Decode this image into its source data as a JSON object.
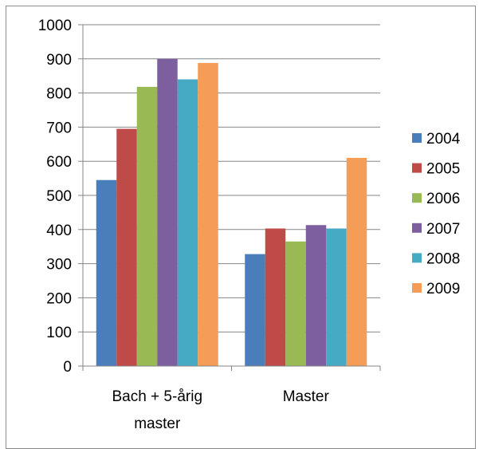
{
  "chart_data": {
    "type": "bar",
    "title": "",
    "xlabel": "",
    "ylabel": "",
    "ylim": [
      0,
      1000
    ],
    "yticks": [
      0,
      100,
      200,
      300,
      400,
      500,
      600,
      700,
      800,
      900,
      1000
    ],
    "grid": true,
    "legend_position": "right",
    "categories": [
      [
        "Bach + 5-årig",
        "master"
      ],
      [
        "Master"
      ]
    ],
    "series": [
      {
        "name": "2004",
        "color": "#4a7ebb",
        "values": [
          545,
          328
        ]
      },
      {
        "name": "2005",
        "color": "#be4b48",
        "values": [
          695,
          403
        ]
      },
      {
        "name": "2006",
        "color": "#98b954",
        "values": [
          818,
          365
        ]
      },
      {
        "name": "2007",
        "color": "#7d5fa0",
        "values": [
          900,
          413
        ]
      },
      {
        "name": "2008",
        "color": "#46aac5",
        "values": [
          840,
          403
        ]
      },
      {
        "name": "2009",
        "color": "#f59d56",
        "values": [
          888,
          610
        ]
      }
    ]
  }
}
